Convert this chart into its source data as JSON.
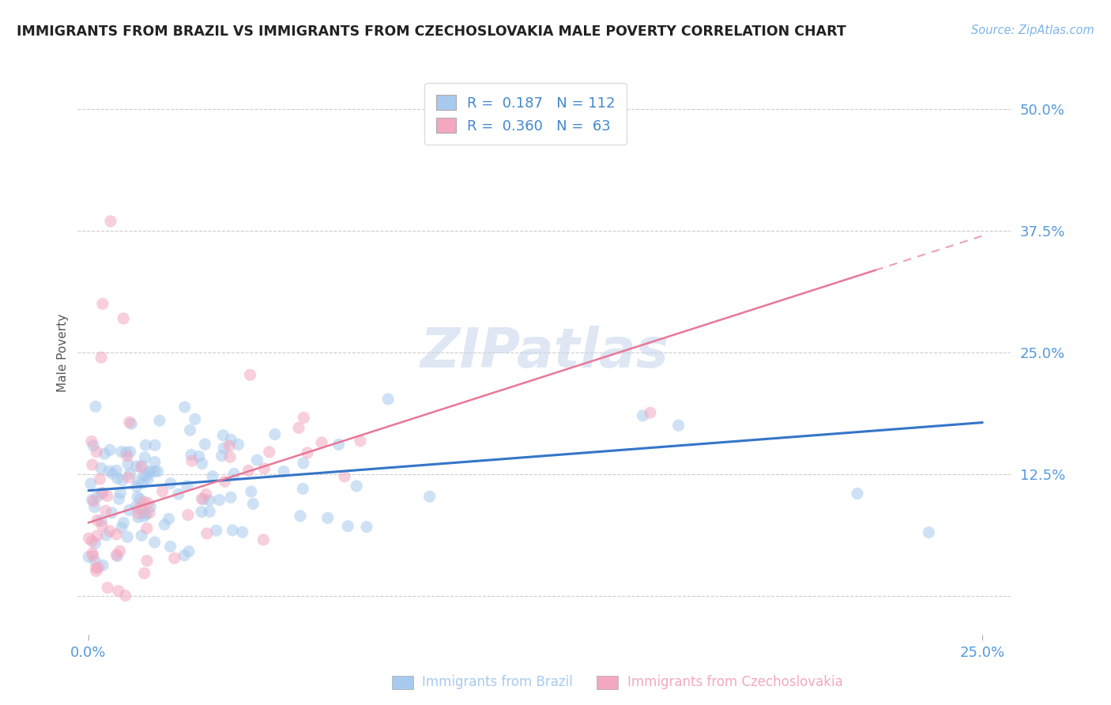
{
  "title": "IMMIGRANTS FROM BRAZIL VS IMMIGRANTS FROM CZECHOSLOVAKIA MALE POVERTY CORRELATION CHART",
  "source": "Source: ZipAtlas.com",
  "ylabel": "Male Poverty",
  "xlim_min": -0.003,
  "xlim_max": 0.258,
  "ylim_min": -0.04,
  "ylim_max": 0.54,
  "yticks": [
    0.0,
    0.125,
    0.25,
    0.375,
    0.5
  ],
  "ytick_labels": [
    "",
    "12.5%",
    "25.0%",
    "37.5%",
    "50.0%"
  ],
  "xtick_vals": [
    0.0,
    0.25
  ],
  "xtick_labels": [
    "0.0%",
    "25.0%"
  ],
  "brazil_R": 0.187,
  "brazil_N": 112,
  "czech_R": 0.36,
  "czech_N": 63,
  "brazil_scatter_color": "#A8CAEE",
  "czech_scatter_color": "#F4A8C0",
  "brazil_line_color": "#3575C8",
  "czech_line_color": "#E87898",
  "brazil_line_x0": 0.0,
  "brazil_line_x1": 0.25,
  "brazil_line_y0": 0.108,
  "brazil_line_y1": 0.178,
  "czech_line_x0": 0.0,
  "czech_line_x1": 0.25,
  "czech_line_y0": 0.075,
  "czech_line_y1": 0.37,
  "tick_label_color": "#5599DD",
  "watermark_text": "ZIPatlas",
  "watermark_color": "#C8D8EC",
  "legend_label1": "Immigrants from Brazil",
  "legend_label2": "Immigrants from Czechoslovakia",
  "background_color": "#FFFFFF",
  "grid_color": "#CCCCCC",
  "title_color": "#222222",
  "source_color": "#7EB5E8",
  "ylabel_color": "#555555",
  "legend_text_color": "#4488CC",
  "scatter_size": 120,
  "scatter_alpha": 0.55
}
